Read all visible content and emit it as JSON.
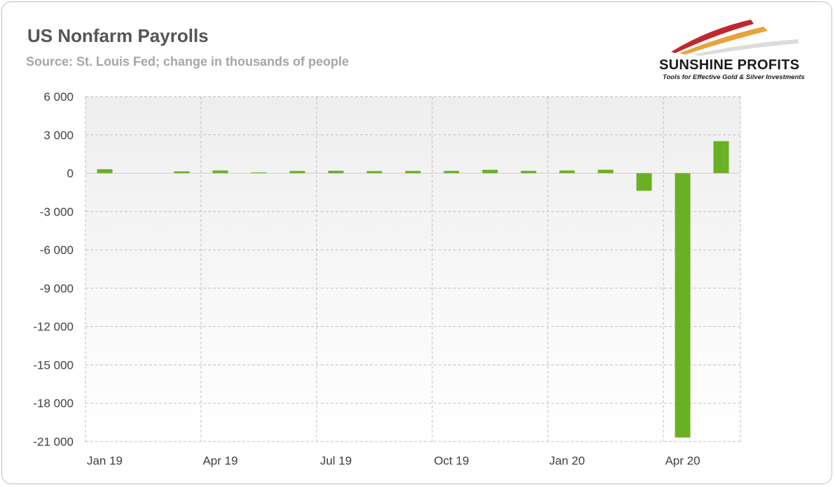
{
  "title": "US Nonfarm Payrolls",
  "subtitle": "Source: St. Louis Fed; change in thousands of people",
  "logo": {
    "name": "SUNSHINE PROFITS",
    "tagline": "Tools for Effective Gold & Silver Investments"
  },
  "colors": {
    "bar": "#6ab023",
    "grid": "#bfbfbf"
  },
  "chart_data": {
    "type": "bar",
    "title": "US Nonfarm Payrolls",
    "subtitle": "Source: St. Louis Fed; change in thousands of people",
    "categories": [
      "Jan 19",
      "Feb 19",
      "Mar 19",
      "Apr 19",
      "May 19",
      "Jun 19",
      "Jul 19",
      "Aug 19",
      "Sep 19",
      "Oct 19",
      "Nov 19",
      "Dec 19",
      "Jan 20",
      "Feb 20",
      "Mar 20",
      "Apr 20",
      "May 20"
    ],
    "x_tick_labels": [
      "Jan 19",
      "Apr 19",
      "Jul 19",
      "Oct 19",
      "Jan 20",
      "Apr 20"
    ],
    "values": [
      312,
      1,
      147,
      216,
      62,
      178,
      194,
      168,
      180,
      185,
      266,
      184,
      214,
      273,
      -1373,
      -20687,
      2509
    ],
    "ylim": [
      -21000,
      6000
    ],
    "y_ticks": [
      6000,
      3000,
      0,
      -3000,
      -6000,
      -9000,
      -12000,
      -15000,
      -18000,
      -21000
    ],
    "y_tick_labels": [
      "6 000",
      "3 000",
      "0",
      "-3 000",
      "-6 000",
      "-9 000",
      "-12 000",
      "-15 000",
      "-18 000",
      "-21 000"
    ],
    "grid": true,
    "legend": "none"
  }
}
